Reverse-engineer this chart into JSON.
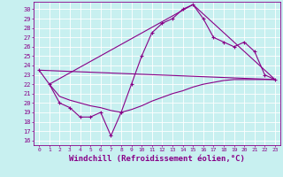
{
  "xlabel": "Windchill (Refroidissement éolien,°C)",
  "bg_color": "#c8f0f0",
  "line_color": "#880088",
  "xlim": [
    -0.5,
    23.5
  ],
  "ylim": [
    15.5,
    30.8
  ],
  "xticks": [
    0,
    1,
    2,
    3,
    4,
    5,
    6,
    7,
    8,
    9,
    10,
    11,
    12,
    13,
    14,
    15,
    16,
    17,
    18,
    19,
    20,
    21,
    22,
    23
  ],
  "yticks": [
    16,
    17,
    18,
    19,
    20,
    21,
    22,
    23,
    24,
    25,
    26,
    27,
    28,
    29,
    30
  ],
  "line1_x": [
    0,
    1,
    2,
    3,
    4,
    5,
    6,
    7,
    8,
    9,
    10,
    11,
    12,
    13,
    14,
    15,
    16,
    17,
    18,
    19,
    20,
    21,
    22,
    23
  ],
  "line1_y": [
    23.5,
    22.0,
    20.0,
    19.5,
    18.5,
    18.5,
    19.0,
    16.5,
    19.0,
    22.0,
    25.0,
    27.5,
    28.5,
    29.0,
    30.0,
    30.5,
    29.0,
    27.0,
    26.5,
    26.0,
    26.5,
    25.5,
    23.0,
    22.5
  ],
  "line2_x": [
    0,
    23
  ],
  "line2_y": [
    23.5,
    22.5
  ],
  "line3_x": [
    1,
    15,
    23
  ],
  "line3_y": [
    22.0,
    30.5,
    22.5
  ],
  "line4_x": [
    1,
    2,
    3,
    4,
    5,
    6,
    7,
    8,
    9,
    10,
    11,
    12,
    13,
    14,
    15,
    16,
    17,
    18,
    19,
    20,
    21,
    22,
    23
  ],
  "line4_y": [
    22.0,
    20.7,
    20.3,
    20.0,
    19.7,
    19.5,
    19.2,
    19.0,
    19.3,
    19.7,
    20.2,
    20.6,
    21.0,
    21.3,
    21.7,
    22.0,
    22.2,
    22.4,
    22.5,
    22.5,
    22.5,
    22.5,
    22.5
  ],
  "marker_size": 2.0,
  "line_width": 0.8,
  "tick_fs": 5.5,
  "xlabel_fs": 6.5
}
